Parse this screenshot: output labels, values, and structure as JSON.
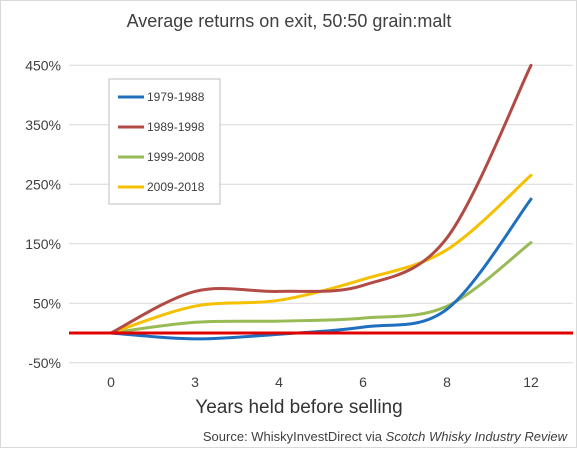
{
  "chart_data": {
    "type": "line",
    "title": "Average returns on exit, 50:50 grain:malt",
    "xlabel": "Years held before selling",
    "ylabel": "",
    "categories": [
      "0",
      "3",
      "4",
      "6",
      "8",
      "12"
    ],
    "y_ticks": [
      "450%",
      "350%",
      "250%",
      "150%",
      "50%",
      "-50%"
    ],
    "y_tick_values": [
      450,
      350,
      250,
      150,
      50,
      -50
    ],
    "ylim": [
      -50,
      500
    ],
    "grid": "horizontal",
    "legend_position": "upper-left",
    "baseline": {
      "value": 0,
      "color": "#e00000"
    },
    "series": [
      {
        "name": "1979-1988",
        "color": "#1f6fbf",
        "values": [
          0,
          -10,
          -2,
          10,
          40,
          225
        ]
      },
      {
        "name": "1989-1998",
        "color": "#b24b45",
        "values": [
          0,
          70,
          70,
          80,
          160,
          450
        ]
      },
      {
        "name": "1999-2008",
        "color": "#98bb55",
        "values": [
          0,
          18,
          20,
          25,
          45,
          152
        ]
      },
      {
        "name": "2009-2018",
        "color": "#f5c000",
        "values": [
          0,
          45,
          55,
          90,
          140,
          265
        ]
      }
    ]
  },
  "source": {
    "prefix": "Source: WhiskyInvestDirect via ",
    "publication": "Scotch Whisky Industry Review"
  }
}
